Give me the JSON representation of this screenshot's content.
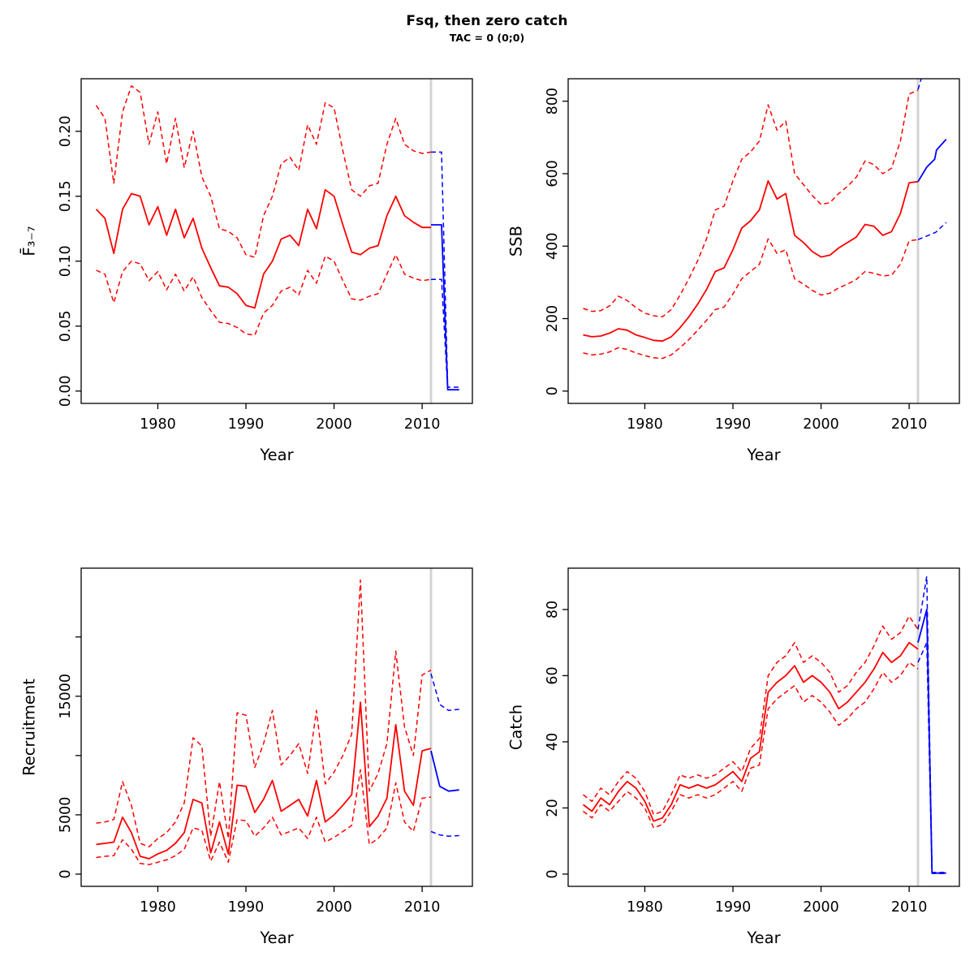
{
  "header": {
    "title": "Fsq, then zero catch",
    "subtitle": "TAC = 0 (0;0)"
  },
  "colors": {
    "historical": "#FF0000",
    "projection": "#0000FF",
    "divider": "#D3D3D3",
    "axis": "#000000"
  },
  "chart_data": [
    {
      "id": "fbar",
      "type": "line",
      "ylabel": "F̄₃₋₇",
      "xlabel": "Year",
      "xlim": [
        1971.3,
        2015.7
      ],
      "ylim": [
        -0.0095,
        0.2405
      ],
      "xticks": [
        1980,
        1990,
        2000,
        2010
      ],
      "yticks": [
        {
          "v": 0.0,
          "l": "0.00"
        },
        {
          "v": 0.05,
          "l": "0.05"
        },
        {
          "v": 0.1,
          "l": "0.10"
        },
        {
          "v": 0.15,
          "l": "0.15"
        },
        {
          "v": 0.2,
          "l": "0.20"
        }
      ],
      "divider_x": 2011,
      "years": [
        1973,
        1974,
        1975,
        1976,
        1977,
        1978,
        1979,
        1980,
        1981,
        1982,
        1983,
        1984,
        1985,
        1986,
        1987,
        1988,
        1989,
        1990,
        1991,
        1992,
        1993,
        1994,
        1995,
        1996,
        1997,
        1998,
        1999,
        2000,
        2001,
        2002,
        2003,
        2004,
        2005,
        2006,
        2007,
        2008,
        2009,
        2010,
        2011
      ],
      "hist_series": [
        {
          "name": "median",
          "dash": false,
          "y": [
            0.14,
            0.133,
            0.106,
            0.14,
            0.152,
            0.15,
            0.128,
            0.142,
            0.12,
            0.14,
            0.118,
            0.133,
            0.11,
            0.095,
            0.081,
            0.08,
            0.075,
            0.066,
            0.064,
            0.09,
            0.1,
            0.117,
            0.12,
            0.112,
            0.14,
            0.125,
            0.155,
            0.15,
            0.128,
            0.107,
            0.105,
            0.11,
            0.112,
            0.135,
            0.15,
            0.135,
            0.13,
            0.126,
            0.126
          ]
        },
        {
          "name": "upper-ci",
          "dash": true,
          "y": [
            0.22,
            0.21,
            0.16,
            0.215,
            0.235,
            0.23,
            0.19,
            0.215,
            0.175,
            0.21,
            0.172,
            0.2,
            0.165,
            0.15,
            0.125,
            0.123,
            0.118,
            0.105,
            0.103,
            0.135,
            0.15,
            0.175,
            0.18,
            0.17,
            0.205,
            0.19,
            0.222,
            0.218,
            0.185,
            0.155,
            0.15,
            0.158,
            0.16,
            0.19,
            0.21,
            0.19,
            0.185,
            0.183,
            0.184
          ]
        },
        {
          "name": "lower-ci",
          "dash": true,
          "y": [
            0.093,
            0.09,
            0.068,
            0.092,
            0.1,
            0.098,
            0.085,
            0.092,
            0.078,
            0.09,
            0.077,
            0.088,
            0.072,
            0.062,
            0.053,
            0.052,
            0.049,
            0.044,
            0.043,
            0.06,
            0.066,
            0.077,
            0.08,
            0.074,
            0.093,
            0.083,
            0.104,
            0.1,
            0.085,
            0.071,
            0.07,
            0.073,
            0.075,
            0.09,
            0.105,
            0.09,
            0.087,
            0.085,
            0.086
          ]
        }
      ],
      "proj_series": [
        {
          "name": "projection-median",
          "dash": false,
          "x": [
            2011,
            2012.2,
            2012.9,
            2014.2
          ],
          "y": [
            0.128,
            0.128,
            0.001,
            0.001
          ]
        },
        {
          "name": "projection-upper",
          "dash": true,
          "x": [
            2011,
            2012.2,
            2012.9,
            2014.2
          ],
          "y": [
            0.184,
            0.184,
            0.003,
            0.003
          ]
        },
        {
          "name": "projection-lower",
          "dash": true,
          "x": [
            2011,
            2012.2,
            2012.9,
            2014.2
          ],
          "y": [
            0.086,
            0.086,
            0.001,
            0.001
          ]
        }
      ]
    },
    {
      "id": "ssb",
      "type": "line",
      "ylabel": "SSB",
      "xlabel": "Year",
      "xlim": [
        1971.3,
        2015.7
      ],
      "ylim": [
        -34,
        862
      ],
      "xticks": [
        1980,
        1990,
        2000,
        2010
      ],
      "yticks": [
        {
          "v": 0,
          "l": "0"
        },
        {
          "v": 200,
          "l": "200"
        },
        {
          "v": 400,
          "l": "400"
        },
        {
          "v": 600,
          "l": "600"
        },
        {
          "v": 800,
          "l": "800"
        }
      ],
      "divider_x": 2011,
      "years": [
        1973,
        1974,
        1975,
        1976,
        1977,
        1978,
        1979,
        1980,
        1981,
        1982,
        1983,
        1984,
        1985,
        1986,
        1987,
        1988,
        1989,
        1990,
        1991,
        1992,
        1993,
        1994,
        1995,
        1996,
        1997,
        1998,
        1999,
        2000,
        2001,
        2002,
        2003,
        2004,
        2005,
        2006,
        2007,
        2008,
        2009,
        2010,
        2011
      ],
      "hist_series": [
        {
          "name": "median",
          "dash": false,
          "y": [
            155,
            150,
            152,
            160,
            172,
            168,
            155,
            148,
            140,
            138,
            150,
            175,
            205,
            240,
            280,
            330,
            340,
            390,
            450,
            470,
            500,
            580,
            530,
            545,
            430,
            410,
            385,
            370,
            375,
            395,
            410,
            425,
            460,
            455,
            430,
            440,
            490,
            575,
            578
          ]
        },
        {
          "name": "upper-ci",
          "dash": true,
          "y": [
            228,
            220,
            222,
            235,
            262,
            250,
            230,
            215,
            208,
            205,
            225,
            265,
            310,
            360,
            420,
            500,
            510,
            580,
            640,
            660,
            690,
            790,
            720,
            745,
            600,
            570,
            540,
            515,
            520,
            545,
            565,
            590,
            635,
            625,
            600,
            615,
            690,
            820,
            830
          ]
        },
        {
          "name": "lower-ci",
          "dash": true,
          "y": [
            105,
            100,
            102,
            108,
            120,
            115,
            105,
            98,
            92,
            90,
            100,
            120,
            142,
            168,
            195,
            225,
            232,
            268,
            310,
            330,
            350,
            420,
            380,
            390,
            310,
            295,
            278,
            265,
            270,
            285,
            295,
            308,
            330,
            325,
            318,
            320,
            350,
            415,
            418
          ]
        }
      ],
      "proj_series": [
        {
          "name": "projection-median",
          "dash": false,
          "x": [
            2011,
            2012,
            2012.9,
            2013.1,
            2014.2
          ],
          "y": [
            578,
            618,
            640,
            665,
            695
          ]
        },
        {
          "name": "projection-upper",
          "dash": true,
          "x": [
            2011,
            2011.9
          ],
          "y": [
            832,
            905
          ]
        },
        {
          "name": "projection-lower",
          "dash": true,
          "x": [
            2011,
            2012,
            2013,
            2014.2
          ],
          "y": [
            418,
            428,
            438,
            465
          ]
        }
      ]
    },
    {
      "id": "recruitment",
      "type": "line",
      "ylabel": "Recruitment",
      "xlabel": "Year",
      "xlim": [
        1971.3,
        2015.7
      ],
      "ylim": [
        -1030,
        25800
      ],
      "xticks": [
        1980,
        1990,
        2000,
        2010
      ],
      "yticks": [
        {
          "v": 0,
          "l": "0"
        },
        {
          "v": 5000,
          "l": "5000"
        },
        {
          "v": 10000,
          "l": ""
        },
        {
          "v": 15000,
          "l": "15000"
        },
        {
          "v": 20000,
          "l": ""
        }
      ],
      "divider_x": 2011,
      "years": [
        1973,
        1974,
        1975,
        1976,
        1977,
        1978,
        1979,
        1980,
        1981,
        1982,
        1983,
        1984,
        1985,
        1986,
        1987,
        1988,
        1989,
        1990,
        1991,
        1992,
        1993,
        1994,
        1995,
        1996,
        1997,
        1998,
        1999,
        2000,
        2001,
        2002,
        2003,
        2004,
        2005,
        2006,
        2007,
        2008,
        2009,
        2010,
        2011
      ],
      "hist_series": [
        {
          "name": "median",
          "dash": false,
          "y": [
            2500,
            2600,
            2700,
            4800,
            3500,
            1500,
            1300,
            1700,
            2000,
            2600,
            3500,
            6300,
            6000,
            1800,
            4400,
            1700,
            7500,
            7400,
            5200,
            6300,
            7900,
            5300,
            5800,
            6300,
            4900,
            7900,
            4400,
            5000,
            5800,
            6700,
            14500,
            4000,
            4900,
            6400,
            12600,
            7000,
            5800,
            10400,
            10600
          ]
        },
        {
          "name": "upper-ci",
          "dash": true,
          "y": [
            4300,
            4400,
            4600,
            7800,
            5800,
            2600,
            2300,
            3000,
            3500,
            4400,
            6000,
            11500,
            10800,
            3200,
            7800,
            3000,
            13600,
            13400,
            9000,
            11000,
            13800,
            9200,
            10000,
            11000,
            8500,
            13800,
            7600,
            8600,
            10000,
            11800,
            24800,
            7000,
            8500,
            11000,
            18800,
            12400,
            10000,
            16800,
            17200
          ]
        },
        {
          "name": "lower-ci",
          "dash": true,
          "y": [
            1400,
            1500,
            1550,
            2900,
            2100,
            900,
            800,
            1000,
            1200,
            1550,
            2100,
            3900,
            3700,
            1100,
            2700,
            1000,
            4600,
            4500,
            3200,
            3900,
            4800,
            3300,
            3600,
            3900,
            3000,
            4800,
            2700,
            3100,
            3600,
            4100,
            8800,
            2500,
            3000,
            3900,
            7700,
            4400,
            3600,
            6400,
            6500
          ]
        }
      ],
      "proj_series": [
        {
          "name": "projection-median",
          "dash": false,
          "x": [
            2011,
            2012,
            2013,
            2014.2
          ],
          "y": [
            10400,
            7400,
            7000,
            7100
          ]
        },
        {
          "name": "projection-upper",
          "dash": true,
          "x": [
            2011,
            2012,
            2013,
            2014.2
          ],
          "y": [
            16900,
            14300,
            13800,
            13900
          ]
        },
        {
          "name": "projection-lower",
          "dash": true,
          "x": [
            2011,
            2012,
            2013,
            2014.2
          ],
          "y": [
            3600,
            3300,
            3200,
            3250
          ]
        }
      ]
    },
    {
      "id": "catch",
      "type": "line",
      "ylabel": "Catch",
      "xlabel": "Year",
      "xlim": [
        1971.3,
        2015.7
      ],
      "ylim": [
        -3.7,
        92.5
      ],
      "xticks": [
        1980,
        1990,
        2000,
        2010
      ],
      "yticks": [
        {
          "v": 0,
          "l": "0"
        },
        {
          "v": 20,
          "l": "20"
        },
        {
          "v": 40,
          "l": "40"
        },
        {
          "v": 60,
          "l": "60"
        },
        {
          "v": 80,
          "l": "80"
        }
      ],
      "divider_x": 2011,
      "years": [
        1973,
        1974,
        1975,
        1976,
        1977,
        1978,
        1979,
        1980,
        1981,
        1982,
        1983,
        1984,
        1985,
        1986,
        1987,
        1988,
        1989,
        1990,
        1991,
        1992,
        1993,
        1994,
        1995,
        1996,
        1997,
        1998,
        1999,
        2000,
        2001,
        2002,
        2003,
        2004,
        2005,
        2006,
        2007,
        2008,
        2009,
        2010,
        2011
      ],
      "hist_series": [
        {
          "name": "median",
          "dash": false,
          "y": [
            21,
            19,
            23,
            21,
            25,
            28,
            26,
            22,
            16,
            17,
            21,
            27,
            26,
            27,
            26,
            27,
            29,
            31,
            28,
            35,
            37,
            55,
            58,
            60,
            63,
            58,
            60,
            58,
            55,
            50,
            52,
            55,
            58,
            62,
            67,
            64,
            66,
            70,
            68
          ]
        },
        {
          "name": "upper-ci",
          "dash": true,
          "y": [
            24,
            22,
            26,
            24,
            28,
            31,
            29,
            25,
            18,
            19,
            24,
            30,
            29,
            30,
            29,
            30,
            32,
            34,
            31,
            38,
            41,
            60,
            64,
            66,
            70,
            64,
            66,
            64,
            61,
            55,
            57,
            61,
            64,
            69,
            75,
            71,
            73,
            78,
            74
          ]
        },
        {
          "name": "lower-ci",
          "dash": true,
          "y": [
            19,
            17,
            21,
            19,
            22,
            25,
            23,
            20,
            14,
            15,
            19,
            24,
            23,
            24,
            23,
            24,
            26,
            28,
            25,
            32,
            33,
            50,
            53,
            55,
            57,
            52,
            54,
            52,
            49,
            45,
            47,
            50,
            52,
            56,
            61,
            58,
            60,
            64,
            62
          ]
        }
      ],
      "proj_series": [
        {
          "name": "projection-median",
          "dash": false,
          "x": [
            2011,
            2012,
            2012.6,
            2014.2
          ],
          "y": [
            70,
            80,
            0.3,
            0.3
          ]
        },
        {
          "name": "projection-upper",
          "dash": true,
          "x": [
            2011,
            2012,
            2012.6,
            2014.2
          ],
          "y": [
            74,
            90,
            0.5,
            0.5
          ]
        },
        {
          "name": "projection-lower",
          "dash": true,
          "x": [
            2011,
            2012,
            2012.6,
            2014.2
          ],
          "y": [
            64,
            70,
            0.2,
            0.2
          ]
        }
      ]
    }
  ]
}
